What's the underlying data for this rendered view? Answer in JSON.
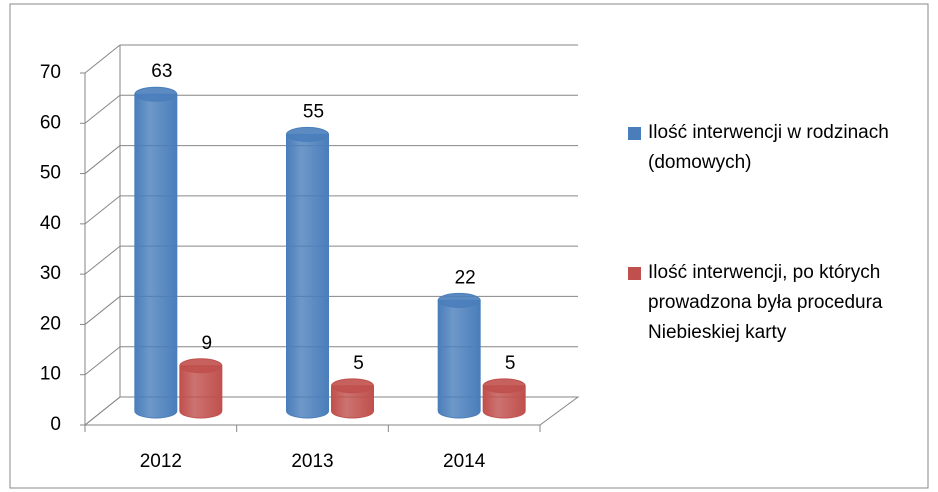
{
  "chart_data": {
    "type": "bar3d",
    "categories": [
      "2012",
      "2013",
      "2014"
    ],
    "series": [
      {
        "name": "Ilość interwencji w rodzinach (domowych)",
        "color": "#4a7ebb",
        "values": [
          63,
          55,
          22
        ]
      },
      {
        "name": "Ilość interwencji, po których prowadzona była procedura Niebieskiej karty",
        "color": "#c0504d",
        "values": [
          9,
          5,
          5
        ]
      }
    ],
    "ylim": [
      0,
      70
    ],
    "yticks": [
      0,
      10,
      20,
      30,
      40,
      50,
      60,
      70
    ],
    "grid": true,
    "legend": "right"
  }
}
